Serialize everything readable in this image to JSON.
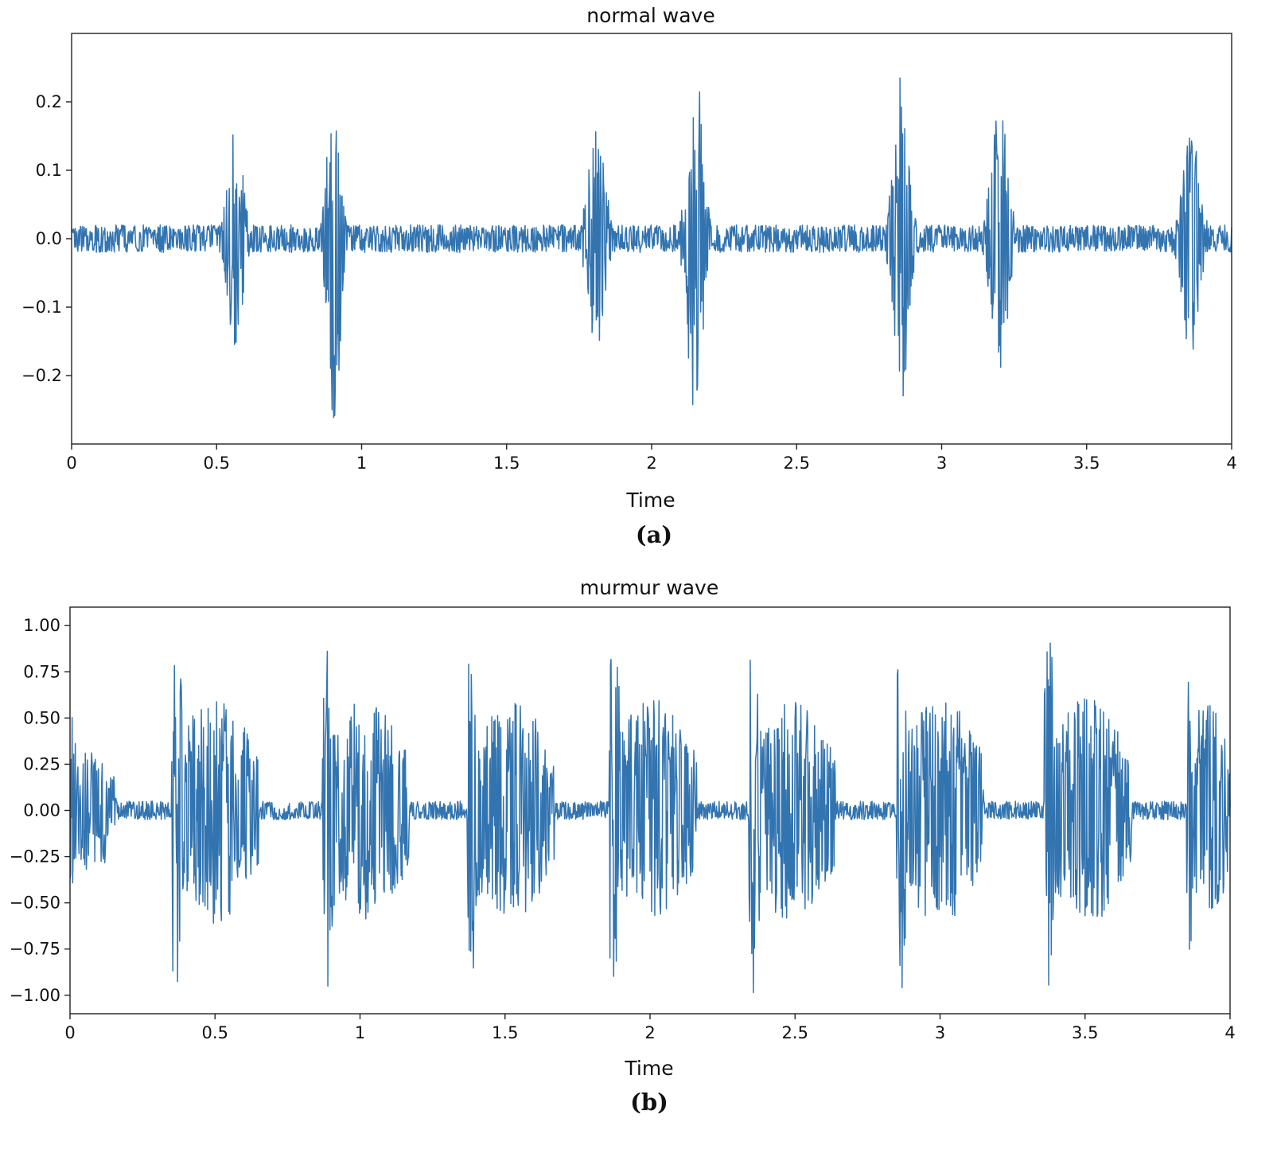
{
  "chart_data": [
    {
      "type": "line",
      "title": "normal wave",
      "xlabel": "Time",
      "ylabel": "",
      "panel_label": "(a)",
      "xlim": [
        0,
        4
      ],
      "ylim": [
        -0.3,
        0.3
      ],
      "x_ticks": [
        0,
        0.5,
        1,
        1.5,
        2,
        2.5,
        3,
        3.5,
        4
      ],
      "x_tick_labels": [
        "0",
        "0.5",
        "1",
        "1.5",
        "2",
        "2.5",
        "3",
        "3.5",
        "4"
      ],
      "y_ticks": [
        0.2,
        0.1,
        0.0,
        -0.1,
        -0.2
      ],
      "y_tick_labels": [
        "0.2",
        "0.1",
        "0.0",
        "−0.1",
        "−0.2"
      ],
      "grid": false,
      "line_color": "#3274b0",
      "series": [
        {
          "baseline_noise": 0.02,
          "bursts": [
            {
              "t": 0.565,
              "width": 0.035,
              "amp": 0.165
            },
            {
              "t": 0.905,
              "width": 0.03,
              "amp": 0.265
            },
            {
              "t": 1.81,
              "width": 0.04,
              "amp": 0.16
            },
            {
              "t": 2.15,
              "width": 0.035,
              "amp": 0.27
            },
            {
              "t": 2.86,
              "width": 0.035,
              "amp": 0.24
            },
            {
              "t": 3.2,
              "width": 0.04,
              "amp": 0.2
            },
            {
              "t": 3.86,
              "width": 0.04,
              "amp": 0.175
            }
          ]
        }
      ]
    },
    {
      "type": "line",
      "title": "murmur wave",
      "xlabel": "Time",
      "ylabel": "",
      "panel_label": "(b)",
      "xlim": [
        0,
        4
      ],
      "ylim": [
        -1.1,
        1.1
      ],
      "x_ticks": [
        0,
        0.5,
        1,
        1.5,
        2,
        2.5,
        3,
        3.5,
        4
      ],
      "x_tick_labels": [
        "0",
        "0.5",
        "1",
        "1.5",
        "2",
        "2.5",
        "3",
        "3.5",
        "4"
      ],
      "y_ticks": [
        1.0,
        0.75,
        0.5,
        0.25,
        0.0,
        -0.25,
        -0.5,
        -0.75,
        -1.0
      ],
      "y_tick_labels": [
        "1.00",
        "0.75",
        "0.50",
        "0.25",
        "0.00",
        "−0.25",
        "−0.50",
        "−0.75",
        "−1.00"
      ],
      "grid": false,
      "line_color": "#3274b0",
      "series": [
        {
          "baseline_noise": 0.05,
          "bursts": [
            {
              "start": 0.0,
              "end": 0.16,
              "amp": 0.55
            },
            {
              "start": 0.35,
              "end": 0.65,
              "amp": 1.0
            },
            {
              "start": 0.87,
              "end": 1.17,
              "amp": 1.0
            },
            {
              "start": 1.37,
              "end": 1.67,
              "amp": 1.0
            },
            {
              "start": 1.86,
              "end": 2.16,
              "amp": 1.0
            },
            {
              "start": 2.34,
              "end": 2.64,
              "amp": 1.0
            },
            {
              "start": 2.85,
              "end": 3.15,
              "amp": 1.0
            },
            {
              "start": 3.36,
              "end": 3.66,
              "amp": 1.0
            },
            {
              "start": 3.85,
              "end": 4.0,
              "amp": 1.0
            }
          ]
        }
      ]
    }
  ]
}
